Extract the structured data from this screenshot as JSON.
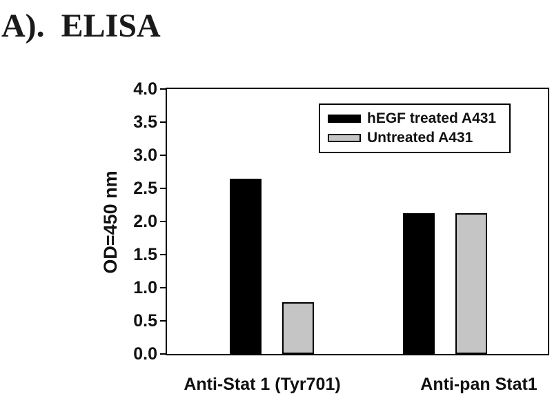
{
  "page": {
    "title": "A).  ELISA",
    "background_color": "#ffffff",
    "frame_color": "#000000"
  },
  "chart_data": {
    "type": "bar",
    "title": "A).  ELISA",
    "xlabel": "",
    "ylabel": "OD=450 nm",
    "ylim": [
      0.0,
      4.0
    ],
    "ytick_step": 0.5,
    "ytick_labels": [
      "0.0",
      "0.5",
      "1.0",
      "1.5",
      "2.0",
      "2.5",
      "3.0",
      "3.5",
      "4.0"
    ],
    "categories": [
      "Anti-Stat 1 (Tyr701)",
      "Anti-pan Stat1"
    ],
    "series": [
      {
        "name": "hEGF treated A431",
        "color": "#000000",
        "values": [
          2.65,
          2.13
        ]
      },
      {
        "name": "Untreated A431",
        "color": "#c5c5c5",
        "values": [
          0.78,
          2.12
        ]
      }
    ],
    "legend_position": "upper right",
    "grid": false,
    "bar_border_color": "#000000"
  }
}
